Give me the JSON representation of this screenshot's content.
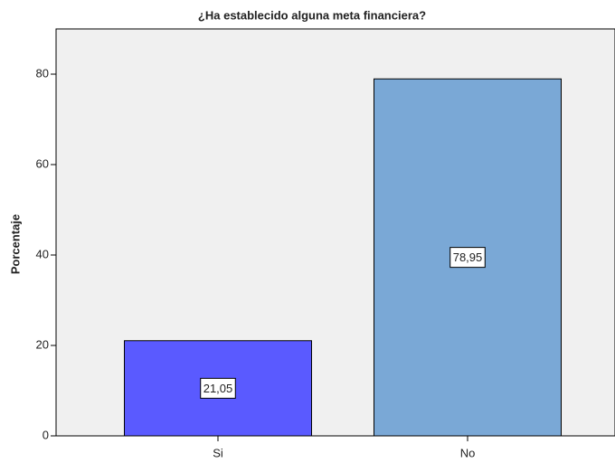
{
  "chart_data": {
    "type": "bar",
    "title": "¿Ha establecido alguna meta financiera?",
    "y_label": "Porcentaje",
    "categories": [
      "Si",
      "No"
    ],
    "values": [
      21.05,
      78.95
    ],
    "value_labels": [
      "21,05",
      "78,95"
    ],
    "colors": [
      "#5a5aff",
      "#7aa8d6"
    ],
    "ylim": [
      0,
      90
    ],
    "yticks": [
      0,
      20,
      40,
      60,
      80
    ]
  }
}
